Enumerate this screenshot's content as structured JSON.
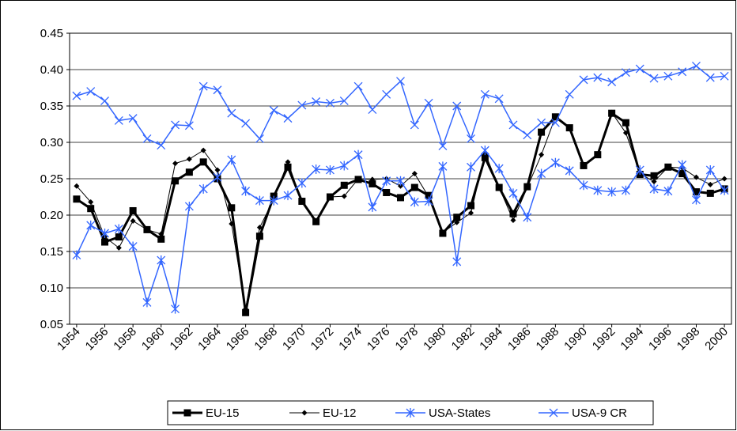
{
  "chart_data": {
    "type": "line",
    "x": [
      1954,
      1955,
      1956,
      1957,
      1958,
      1959,
      1960,
      1961,
      1962,
      1963,
      1964,
      1965,
      1966,
      1967,
      1968,
      1969,
      1970,
      1971,
      1972,
      1973,
      1974,
      1975,
      1976,
      1977,
      1978,
      1979,
      1980,
      1981,
      1982,
      1983,
      1984,
      1985,
      1986,
      1987,
      1988,
      1989,
      1990,
      1991,
      1992,
      1993,
      1994,
      1995,
      1996,
      1997,
      1998,
      1999,
      2000
    ],
    "xlim": [
      1953.5,
      2000.5
    ],
    "xticks": [
      1954,
      1956,
      1958,
      1960,
      1962,
      1964,
      1966,
      1968,
      1970,
      1972,
      1974,
      1976,
      1978,
      1980,
      1982,
      1984,
      1986,
      1988,
      1990,
      1992,
      1994,
      1996,
      1998,
      2000
    ],
    "ylim": [
      0.05,
      0.45
    ],
    "yticks": [
      0.05,
      {
        "value": 0.1,
        "label": "0.10"
      },
      0.15,
      {
        "value": 0.2,
        "label": "0.20"
      },
      0.25,
      {
        "value": 0.3,
        "label": "0.30"
      },
      0.35,
      {
        "value": 0.4,
        "label": "0.40"
      },
      0.45
    ],
    "grid": true,
    "legend": "bottom",
    "series": [
      {
        "name": "EU-15",
        "color": "#000000",
        "marker": "square",
        "width": 3,
        "values": [
          0.222,
          0.209,
          0.163,
          0.17,
          0.206,
          0.18,
          0.167,
          0.247,
          0.259,
          0.273,
          0.25,
          0.21,
          0.066,
          0.171,
          0.226,
          0.266,
          0.219,
          0.191,
          0.225,
          0.241,
          0.249,
          0.243,
          0.231,
          0.224,
          0.238,
          0.227,
          0.175,
          0.197,
          0.213,
          0.279,
          0.238,
          0.202,
          0.239,
          0.314,
          0.335,
          0.32,
          0.268,
          0.283,
          0.34,
          0.327,
          0.256,
          0.254,
          0.266,
          0.257,
          0.232,
          0.23,
          0.236
        ]
      },
      {
        "name": "EU-12",
        "color": "#000000",
        "marker": "diamond",
        "width": 1,
        "values": [
          0.24,
          0.218,
          0.17,
          0.155,
          0.192,
          0.18,
          0.174,
          0.271,
          0.277,
          0.289,
          0.262,
          0.188,
          0.071,
          0.183,
          0.222,
          0.273,
          0.218,
          0.191,
          0.225,
          0.226,
          0.25,
          0.249,
          0.25,
          0.24,
          0.257,
          0.225,
          0.176,
          0.19,
          0.203,
          0.285,
          0.238,
          0.193,
          0.238,
          0.283,
          0.335,
          0.32,
          0.267,
          0.283,
          0.341,
          0.313,
          0.257,
          0.246,
          0.266,
          0.265,
          0.252,
          0.242,
          0.25
        ]
      },
      {
        "name": "USA-States",
        "color": "#3366ff",
        "marker": "star",
        "width": 1.5,
        "values": [
          0.145,
          0.186,
          0.175,
          0.181,
          0.157,
          0.08,
          0.138,
          0.071,
          0.212,
          0.236,
          0.252,
          0.276,
          0.233,
          0.22,
          0.22,
          0.227,
          0.244,
          0.263,
          0.262,
          0.268,
          0.283,
          0.211,
          0.247,
          0.247,
          0.218,
          0.219,
          0.267,
          0.136,
          0.266,
          0.289,
          0.264,
          0.23,
          0.197,
          0.257,
          0.272,
          0.261,
          0.241,
          0.234,
          0.232,
          0.234,
          0.262,
          0.236,
          0.233,
          0.269,
          0.221,
          0.262,
          0.234
        ]
      },
      {
        "name": "USA-9 CR",
        "color": "#3366ff",
        "marker": "x",
        "width": 1.5,
        "values": [
          0.364,
          0.37,
          0.357,
          0.33,
          0.333,
          0.305,
          0.296,
          0.324,
          0.323,
          0.377,
          0.372,
          0.34,
          0.326,
          0.305,
          0.344,
          0.333,
          0.351,
          0.356,
          0.354,
          0.357,
          0.377,
          0.345,
          0.366,
          0.384,
          0.324,
          0.354,
          0.295,
          0.35,
          0.305,
          0.366,
          0.36,
          0.324,
          0.31,
          0.327,
          0.327,
          0.366,
          0.386,
          0.389,
          0.383,
          0.396,
          0.401,
          0.388,
          0.391,
          0.397,
          0.405,
          0.389,
          0.391
        ]
      }
    ]
  }
}
